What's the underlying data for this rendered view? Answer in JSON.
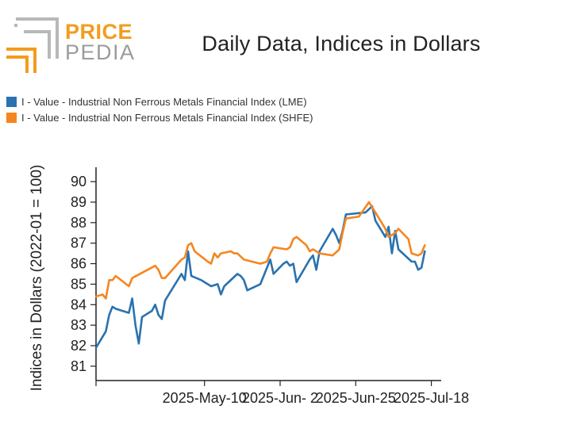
{
  "logo": {
    "word1": "PRICE",
    "word2": "PEDIA"
  },
  "colors": {
    "lme": "#2a72b0",
    "shfe": "#f5861f",
    "logo_orange": "#f39c1f",
    "logo_gray": "#b8b8b8"
  },
  "chart_data": {
    "type": "line",
    "title": "Daily Data, Indices in Dollars",
    "ylabel": "Indices in Dollars (2022-01 = 100)",
    "xlabel": "",
    "ylim": [
      80.3,
      90.7
    ],
    "yticks": [
      81,
      82,
      83,
      84,
      85,
      86,
      87,
      88,
      89,
      90
    ],
    "x_range": [
      "2025-04-07",
      "2025-07-21"
    ],
    "xticks": [
      {
        "date": "2025-05-10",
        "label": "2025-May-10"
      },
      {
        "date": "2025-06-02",
        "label": "2025-Jun- 2"
      },
      {
        "date": "2025-06-25",
        "label": "2025-Jun-25"
      },
      {
        "date": "2025-07-18",
        "label": "2025-Jul-18"
      }
    ],
    "legend_position": "top-left",
    "series": [
      {
        "name": "I - Value - Industrial Non Ferrous Metals Financial Index (LME)",
        "color": "#2a72b0",
        "points": [
          [
            "2025-04-07",
            81.9
          ],
          [
            "2025-04-10",
            82.7
          ],
          [
            "2025-04-11",
            83.5
          ],
          [
            "2025-04-12",
            83.9
          ],
          [
            "2025-04-13",
            83.8
          ],
          [
            "2025-04-17",
            83.6
          ],
          [
            "2025-04-18",
            84.3
          ],
          [
            "2025-04-19",
            83.0
          ],
          [
            "2025-04-20",
            82.1
          ],
          [
            "2025-04-21",
            83.4
          ],
          [
            "2025-04-24",
            83.7
          ],
          [
            "2025-04-25",
            84.0
          ],
          [
            "2025-04-26",
            83.5
          ],
          [
            "2025-04-27",
            83.3
          ],
          [
            "2025-04-28",
            84.2
          ],
          [
            "2025-05-03",
            85.5
          ],
          [
            "2025-05-04",
            85.2
          ],
          [
            "2025-05-05",
            86.6
          ],
          [
            "2025-05-06",
            85.4
          ],
          [
            "2025-05-09",
            85.2
          ],
          [
            "2025-05-12",
            84.9
          ],
          [
            "2025-05-14",
            85.0
          ],
          [
            "2025-05-15",
            84.5
          ],
          [
            "2025-05-16",
            84.9
          ],
          [
            "2025-05-20",
            85.5
          ],
          [
            "2025-05-21",
            85.4
          ],
          [
            "2025-05-22",
            85.2
          ],
          [
            "2025-05-23",
            84.7
          ],
          [
            "2025-05-27",
            85.0
          ],
          [
            "2025-05-30",
            86.2
          ],
          [
            "2025-05-31",
            85.5
          ],
          [
            "2025-06-03",
            86.0
          ],
          [
            "2025-06-04",
            86.1
          ],
          [
            "2025-06-05",
            85.9
          ],
          [
            "2025-06-06",
            86.0
          ],
          [
            "2025-06-07",
            85.1
          ],
          [
            "2025-06-11",
            86.2
          ],
          [
            "2025-06-12",
            86.4
          ],
          [
            "2025-06-13",
            85.7
          ],
          [
            "2025-06-14",
            86.6
          ],
          [
            "2025-06-18",
            87.7
          ],
          [
            "2025-06-19",
            87.4
          ],
          [
            "2025-06-20",
            87.0
          ],
          [
            "2025-06-21",
            87.6
          ],
          [
            "2025-06-22",
            88.4
          ],
          [
            "2025-06-28",
            88.5
          ],
          [
            "2025-06-30",
            88.8
          ],
          [
            "2025-07-01",
            88.1
          ],
          [
            "2025-07-04",
            87.3
          ],
          [
            "2025-07-05",
            87.8
          ],
          [
            "2025-07-06",
            86.5
          ],
          [
            "2025-07-07",
            87.6
          ],
          [
            "2025-07-08",
            86.7
          ],
          [
            "2025-07-12",
            86.1
          ],
          [
            "2025-07-13",
            86.1
          ],
          [
            "2025-07-14",
            85.7
          ],
          [
            "2025-07-15",
            85.8
          ],
          [
            "2025-07-16",
            86.6
          ]
        ]
      },
      {
        "name": "I - Value - Industrial Non Ferrous Metals Financial Index (SHFE)",
        "color": "#f5861f",
        "points": [
          [
            "2025-04-07",
            84.4
          ],
          [
            "2025-04-09",
            84.5
          ],
          [
            "2025-04-10",
            84.3
          ],
          [
            "2025-04-11",
            85.2
          ],
          [
            "2025-04-12",
            85.2
          ],
          [
            "2025-04-13",
            85.4
          ],
          [
            "2025-04-17",
            84.9
          ],
          [
            "2025-04-18",
            85.3
          ],
          [
            "2025-04-25",
            85.9
          ],
          [
            "2025-04-26",
            85.7
          ],
          [
            "2025-04-27",
            85.3
          ],
          [
            "2025-04-28",
            85.3
          ],
          [
            "2025-05-03",
            86.2
          ],
          [
            "2025-05-04",
            86.3
          ],
          [
            "2025-05-05",
            86.9
          ],
          [
            "2025-05-06",
            87.0
          ],
          [
            "2025-05-07",
            86.6
          ],
          [
            "2025-05-11",
            86.1
          ],
          [
            "2025-05-12",
            86.0
          ],
          [
            "2025-05-13",
            86.5
          ],
          [
            "2025-05-14",
            86.3
          ],
          [
            "2025-05-15",
            86.5
          ],
          [
            "2025-05-18",
            86.6
          ],
          [
            "2025-05-19",
            86.5
          ],
          [
            "2025-05-20",
            86.5
          ],
          [
            "2025-05-22",
            86.2
          ],
          [
            "2025-05-27",
            86.0
          ],
          [
            "2025-05-29",
            86.1
          ],
          [
            "2025-05-30",
            86.5
          ],
          [
            "2025-05-31",
            86.8
          ],
          [
            "2025-06-04",
            86.7
          ],
          [
            "2025-06-05",
            86.8
          ],
          [
            "2025-06-06",
            87.2
          ],
          [
            "2025-06-07",
            87.3
          ],
          [
            "2025-06-10",
            86.9
          ],
          [
            "2025-06-11",
            86.6
          ],
          [
            "2025-06-12",
            86.7
          ],
          [
            "2025-06-13",
            86.6
          ],
          [
            "2025-06-14",
            86.5
          ],
          [
            "2025-06-18",
            86.4
          ],
          [
            "2025-06-20",
            86.7
          ],
          [
            "2025-06-21",
            87.5
          ],
          [
            "2025-06-22",
            88.2
          ],
          [
            "2025-06-26",
            88.3
          ],
          [
            "2025-06-29",
            89.0
          ],
          [
            "2025-07-01",
            88.5
          ],
          [
            "2025-07-04",
            87.7
          ],
          [
            "2025-07-05",
            87.3
          ],
          [
            "2025-07-06",
            87.4
          ],
          [
            "2025-07-07",
            87.5
          ],
          [
            "2025-07-08",
            87.7
          ],
          [
            "2025-07-11",
            87.2
          ],
          [
            "2025-07-12",
            86.5
          ],
          [
            "2025-07-14",
            86.4
          ],
          [
            "2025-07-15",
            86.5
          ],
          [
            "2025-07-16",
            86.9
          ]
        ]
      }
    ]
  }
}
